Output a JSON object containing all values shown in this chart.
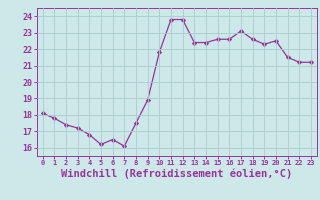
{
  "x": [
    0,
    1,
    2,
    3,
    4,
    5,
    6,
    7,
    8,
    9,
    10,
    11,
    12,
    13,
    14,
    15,
    16,
    17,
    18,
    19,
    20,
    21,
    22,
    23
  ],
  "y": [
    18.1,
    17.8,
    17.4,
    17.2,
    16.8,
    16.2,
    16.5,
    16.1,
    17.5,
    18.9,
    21.8,
    23.8,
    23.8,
    22.4,
    22.4,
    22.6,
    22.6,
    23.1,
    22.6,
    22.3,
    22.5,
    21.5,
    21.2,
    21.2
  ],
  "line_color": "#993399",
  "marker": "D",
  "marker_size": 2.2,
  "bg_color": "#cce8e8",
  "grid_color": "#aacccc",
  "xlabel": "Windchill (Refroidissement éolien,°C)",
  "xlabel_fontsize": 7.5,
  "tick_label_color": "#993399",
  "xlabel_color": "#993399",
  "ylim": [
    15.5,
    24.5
  ],
  "yticks": [
    16,
    17,
    18,
    19,
    20,
    21,
    22,
    23,
    24
  ],
  "xlim": [
    -0.5,
    23.5
  ],
  "xticks": [
    0,
    1,
    2,
    3,
    4,
    5,
    6,
    7,
    8,
    9,
    10,
    11,
    12,
    13,
    14,
    15,
    16,
    17,
    18,
    19,
    20,
    21,
    22,
    23
  ],
  "spine_color": "#993399"
}
